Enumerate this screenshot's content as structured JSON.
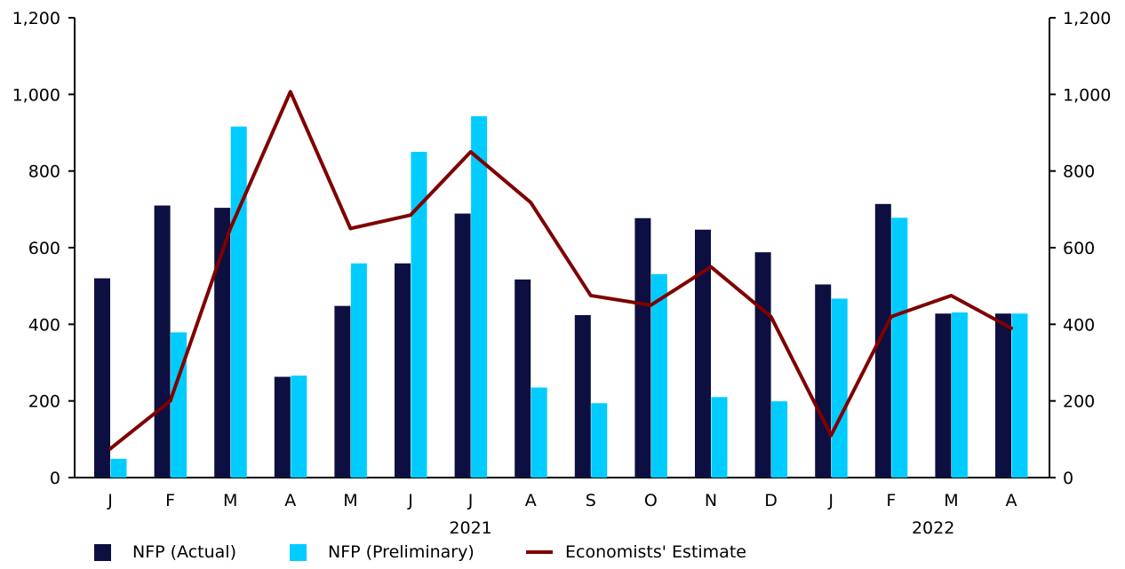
{
  "chart_data": {
    "type": "bar",
    "categories": [
      "J",
      "F",
      "M",
      "A",
      "M",
      "J",
      "J",
      "A",
      "S",
      "O",
      "N",
      "D",
      "J",
      "F",
      "M",
      "A"
    ],
    "year_labels": [
      {
        "label": "2021",
        "category_index": 6
      },
      {
        "label": "2022",
        "category_index": 13.7
      }
    ],
    "series": [
      {
        "name": "NFP (Actual)",
        "type": "bar",
        "values": [
          520,
          710,
          704,
          263,
          448,
          559,
          689,
          517,
          424,
          677,
          647,
          588,
          504,
          714,
          428,
          428
        ]
      },
      {
        "name": "NFP (Preliminary)",
        "type": "bar",
        "values": [
          49,
          379,
          916,
          266,
          559,
          850,
          943,
          235,
          194,
          531,
          210,
          199,
          467,
          678,
          431,
          428
        ]
      },
      {
        "name": "Economists' Estimate",
        "type": "line",
        "values": [
          75,
          200,
          650,
          1007,
          650,
          685,
          850,
          718,
          475,
          450,
          550,
          420,
          110,
          420,
          475,
          390
        ]
      }
    ],
    "ylim": [
      0,
      1200
    ],
    "yticks": [
      "0",
      "200",
      "400",
      "600",
      "800",
      "1,000",
      "1,200"
    ],
    "ytick_values": [
      0,
      200,
      400,
      600,
      800,
      1000,
      1200
    ],
    "right_axis_ticks": [
      "0",
      "200",
      "400",
      "600",
      "800",
      "1,000",
      "1,200"
    ],
    "grid": false,
    "legend_position": "bottom",
    "colors": {
      "actual": "#0c0f3f",
      "preliminary": "#00ccff",
      "estimate": "#7f0000",
      "axis": "#000000"
    }
  },
  "legend": {
    "items": [
      "NFP (Actual)",
      "NFP (Preliminary)",
      "Economists' Estimate"
    ]
  }
}
